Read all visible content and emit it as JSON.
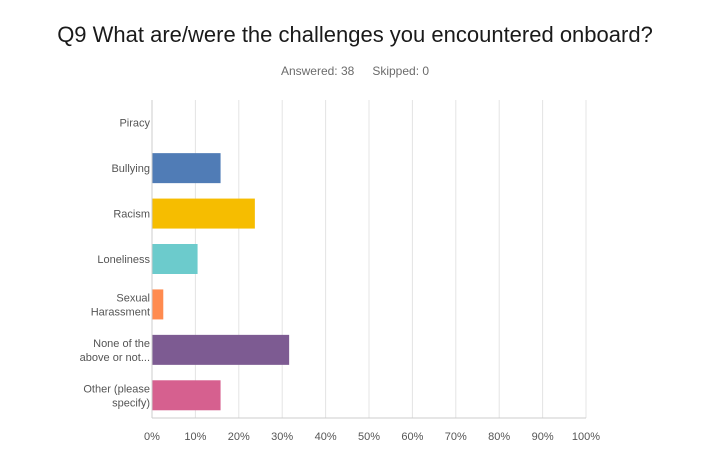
{
  "header": {
    "title": "Q9 What are/were the challenges you encountered onboard?",
    "answered": "Answered: 38",
    "skipped": "Skipped: 0"
  },
  "chart_data": {
    "type": "bar",
    "orientation": "horizontal",
    "categories": [
      [
        "Piracy"
      ],
      [
        "Bullying"
      ],
      [
        "Racism"
      ],
      [
        "Loneliness"
      ],
      [
        "Sexual",
        "Harassment"
      ],
      [
        "None of the",
        "above or not..."
      ],
      [
        "Other (please",
        "specify)"
      ]
    ],
    "values": [
      0,
      15.8,
      23.7,
      10.5,
      2.6,
      31.6,
      15.8
    ],
    "colors": [
      "#6aa0d8",
      "#507cb6",
      "#f6bd00",
      "#6ccbcc",
      "#ff8b4f",
      "#7d5b92",
      "#d6608f"
    ],
    "xlim": [
      0,
      100
    ],
    "ticks": [
      "0%",
      "10%",
      "20%",
      "30%",
      "40%",
      "50%",
      "60%",
      "70%",
      "80%",
      "90%",
      "100%"
    ],
    "grid": true
  }
}
